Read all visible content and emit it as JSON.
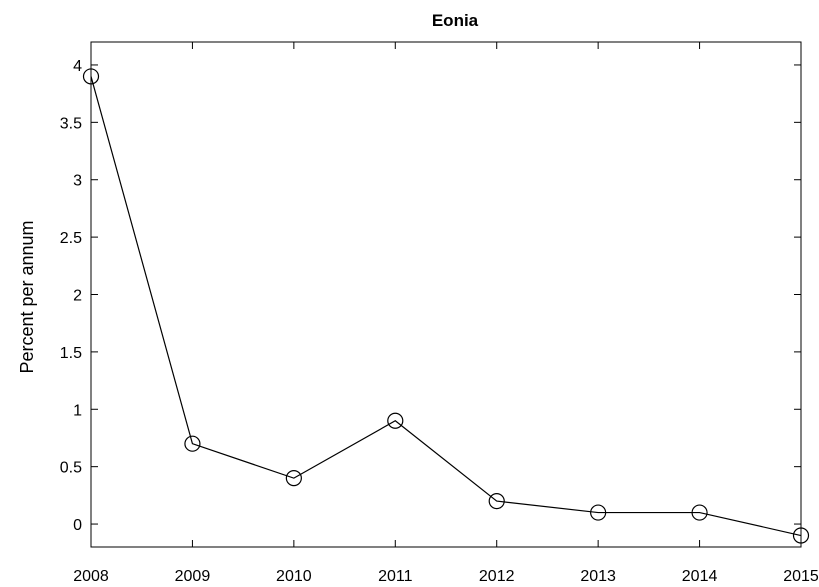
{
  "chart_data": {
    "type": "line",
    "title": "Eonia",
    "xlabel": "",
    "ylabel": "Percent per annum",
    "x": [
      2008,
      2009,
      2010,
      2011,
      2012,
      2013,
      2014,
      2015
    ],
    "series": [
      {
        "values": [
          3.9,
          0.7,
          0.4,
          0.9,
          0.2,
          0.1,
          0.1,
          -0.1
        ]
      }
    ],
    "xlim": [
      2008,
      2015
    ],
    "ylim": [
      -0.2,
      4.2
    ],
    "xticks": [
      "2008",
      "2009",
      "2010",
      "2011",
      "2012",
      "2013",
      "2014",
      "2015"
    ],
    "yticks": [
      "0",
      "0.5",
      "1",
      "1.5",
      "2",
      "2.5",
      "3",
      "3.5",
      "4"
    ],
    "grid": false,
    "marker": "open-circle",
    "line_color": "#000000"
  }
}
